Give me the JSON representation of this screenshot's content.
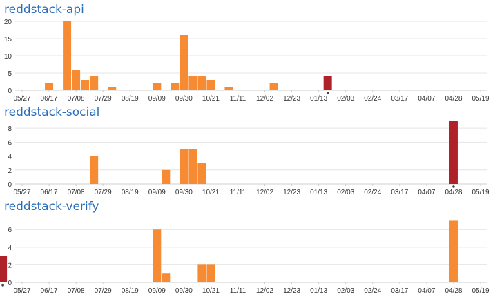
{
  "colors": {
    "title": "#2a6ebb",
    "bar": "#f68b33",
    "bar_current": "#b0222a",
    "grid": "#e4e4e4",
    "axis": "#cfcfcf",
    "marker": "#444444"
  },
  "x_tick_labels": [
    "05/27",
    "06/17",
    "07/08",
    "07/29",
    "08/19",
    "09/09",
    "09/30",
    "10/21",
    "11/11",
    "12/02",
    "12/23",
    "01/13",
    "02/03",
    "02/24",
    "03/17",
    "04/07",
    "04/28",
    "05/19"
  ],
  "chart_data": [
    {
      "type": "bar",
      "title": "reddstack-api",
      "x_unit": "week",
      "x_range": [
        "05/27",
        "05/19"
      ],
      "yticks": [
        0,
        5,
        10,
        15,
        20
      ],
      "ylim": [
        0,
        20
      ],
      "grid": true,
      "bars": [
        {
          "week": "06/17",
          "value": 2
        },
        {
          "week": "07/01",
          "value": 20
        },
        {
          "week": "07/08",
          "value": 6
        },
        {
          "week": "07/15",
          "value": 3
        },
        {
          "week": "07/22",
          "value": 4
        },
        {
          "week": "08/05",
          "value": 1
        },
        {
          "week": "09/09",
          "value": 2
        },
        {
          "week": "09/23",
          "value": 2
        },
        {
          "week": "09/30",
          "value": 16
        },
        {
          "week": "10/07",
          "value": 4
        },
        {
          "week": "10/14",
          "value": 4
        },
        {
          "week": "10/21",
          "value": 3
        },
        {
          "week": "11/04",
          "value": 1
        },
        {
          "week": "12/09",
          "value": 2
        },
        {
          "week": "01/20",
          "value": 4,
          "current": true
        }
      ]
    },
    {
      "type": "bar",
      "title": "reddstack-social",
      "x_unit": "week",
      "x_range": [
        "05/27",
        "05/19"
      ],
      "yticks": [
        0,
        2,
        4,
        6,
        8
      ],
      "ylim": [
        0,
        8.8
      ],
      "grid": true,
      "bars": [
        {
          "week": "07/22",
          "value": 4
        },
        {
          "week": "09/16",
          "value": 2
        },
        {
          "week": "09/30",
          "value": 5
        },
        {
          "week": "10/07",
          "value": 5
        },
        {
          "week": "10/14",
          "value": 3
        },
        {
          "week": "04/28",
          "value": 9,
          "current": true
        }
      ]
    },
    {
      "type": "bar",
      "title": "reddstack-verify",
      "x_unit": "week",
      "x_range": [
        "05/27",
        "05/19"
      ],
      "yticks": [
        0,
        2,
        4,
        6
      ],
      "ylim": [
        0,
        6.8
      ],
      "grid": true,
      "bars": [
        {
          "week": "09/09",
          "value": 6
        },
        {
          "week": "09/16",
          "value": 1
        },
        {
          "week": "10/14",
          "value": 2
        },
        {
          "week": "10/21",
          "value": 2
        },
        {
          "week": "04/28",
          "value": 7
        },
        {
          "week": "05/12",
          "value": 3,
          "current": true
        }
      ]
    }
  ]
}
